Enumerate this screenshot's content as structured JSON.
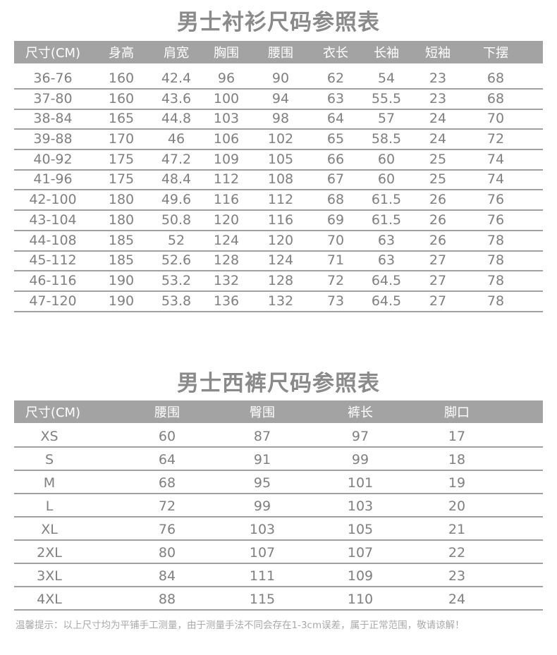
{
  "shirt": {
    "title": "男士衬衫尺码参照表",
    "headers": [
      "尺寸(CM)",
      "身高",
      "肩宽",
      "胸围",
      "腰围",
      "衣长",
      "长袖",
      "短袖",
      "下摆"
    ],
    "rows": [
      [
        "36-76",
        "160",
        "42.4",
        "96",
        "90",
        "62",
        "54",
        "23",
        "68"
      ],
      [
        "37-80",
        "160",
        "43.6",
        "100",
        "94",
        "63",
        "55.5",
        "23",
        "68"
      ],
      [
        "38-84",
        "165",
        "44.8",
        "103",
        "98",
        "64",
        "57",
        "24",
        "70"
      ],
      [
        "39-88",
        "170",
        "46",
        "106",
        "102",
        "65",
        "58.5",
        "24",
        "72"
      ],
      [
        "40-92",
        "175",
        "47.2",
        "109",
        "105",
        "66",
        "60",
        "25",
        "74"
      ],
      [
        "41-96",
        "175",
        "48.4",
        "112",
        "108",
        "67",
        "60",
        "25",
        "74"
      ],
      [
        "42-100",
        "180",
        "49.6",
        "116",
        "112",
        "68",
        "61.5",
        "26",
        "76"
      ],
      [
        "43-104",
        "180",
        "50.8",
        "120",
        "116",
        "69",
        "61.5",
        "26",
        "76"
      ],
      [
        "44-108",
        "185",
        "52",
        "124",
        "120",
        "70",
        "63",
        "26",
        "78"
      ],
      [
        "45-112",
        "185",
        "52.6",
        "128",
        "124",
        "71",
        "63",
        "27",
        "78"
      ],
      [
        "46-116",
        "190",
        "53.2",
        "132",
        "128",
        "72",
        "64.5",
        "27",
        "78"
      ],
      [
        "47-120",
        "190",
        "53.8",
        "136",
        "132",
        "73",
        "64.5",
        "27",
        "78"
      ]
    ]
  },
  "pants": {
    "title": "男士西裤尺码参照表",
    "headers": [
      "尺寸(CM)",
      "腰围",
      "臀围",
      "裤长",
      "脚口"
    ],
    "rows": [
      [
        "XS",
        "60",
        "87",
        "97",
        "17"
      ],
      [
        "S",
        "64",
        "91",
        "99",
        "18"
      ],
      [
        "M",
        "68",
        "95",
        "101",
        "19"
      ],
      [
        "L",
        "72",
        "99",
        "103",
        "20"
      ],
      [
        "XL",
        "76",
        "103",
        "105",
        "21"
      ],
      [
        "2XL",
        "80",
        "107",
        "107",
        "22"
      ],
      [
        "3XL",
        "84",
        "111",
        "109",
        "23"
      ],
      [
        "4XL",
        "88",
        "115",
        "110",
        "24"
      ]
    ]
  },
  "note": "温馨提示：以上尺寸均为平铺手工测量，由于测量手法不同会存在1-3cm误差，属于正常范围，敬请谅解！"
}
